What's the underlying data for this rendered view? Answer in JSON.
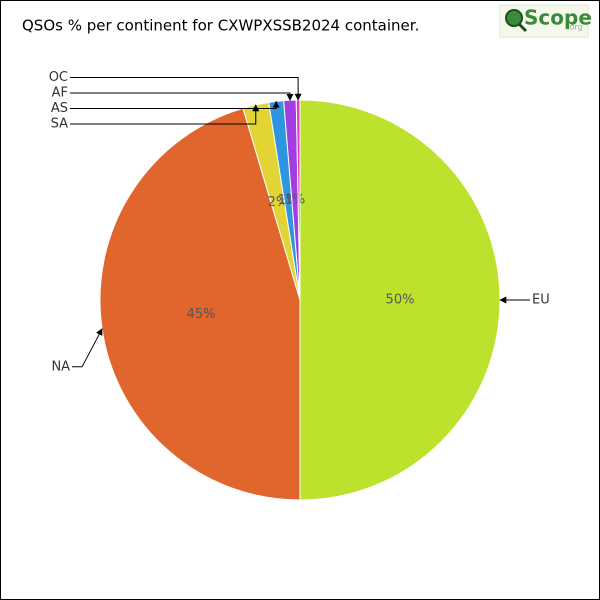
{
  "chart_data": {
    "type": "pie",
    "title": "QSOs % per continent for CXWPXSSB2024 container.",
    "categories": [
      "EU",
      "NA",
      "SA",
      "AS",
      "AF",
      "OC"
    ],
    "values": [
      50,
      45.4,
      2.1,
      1.2,
      1.0,
      0.3
    ],
    "value_labels": [
      "50%",
      "45%",
      "2%",
      "1%",
      "1%",
      null
    ],
    "colors": [
      "#bde22e",
      "#e0662e",
      "#e2d434",
      "#2e96e0",
      "#a03ee0",
      "#e03ebd"
    ]
  },
  "logo": {
    "text": "Scope",
    "suffix": ".org"
  }
}
